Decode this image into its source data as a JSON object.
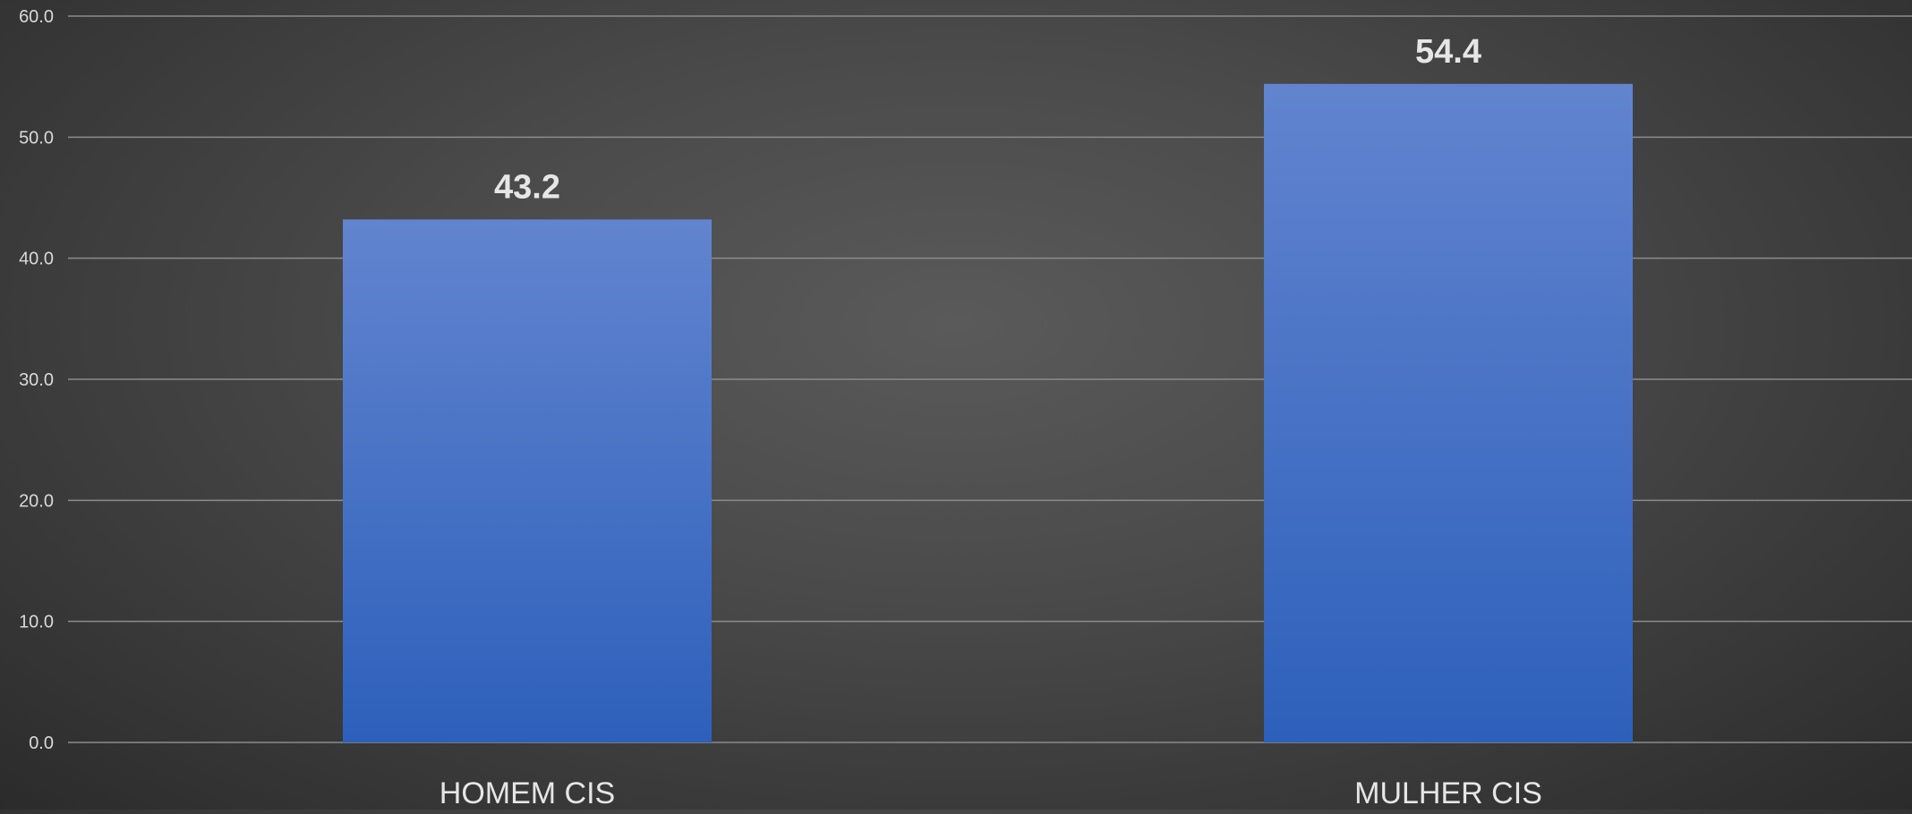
{
  "chart_data": {
    "type": "bar",
    "categories": [
      "HOMEM CIS",
      "MULHER CIS"
    ],
    "values": [
      43.2,
      54.4
    ],
    "data_labels": [
      "43.2",
      "54.4"
    ],
    "ylim": [
      0,
      60
    ],
    "yticks": [
      0,
      10,
      20,
      30,
      40,
      50,
      60
    ],
    "ytick_labels": [
      "0.0",
      "10.0",
      "20.0",
      "30.0",
      "40.0",
      "50.0",
      "60.0"
    ],
    "grid": true,
    "legend": "none",
    "colors": {
      "bar_top": "#6284cf",
      "bar_bottom": "#2d60bb",
      "gridline": "#8c8c8c",
      "tick_text": "#d9d9d9",
      "label_text": "#e6e6e6"
    }
  }
}
